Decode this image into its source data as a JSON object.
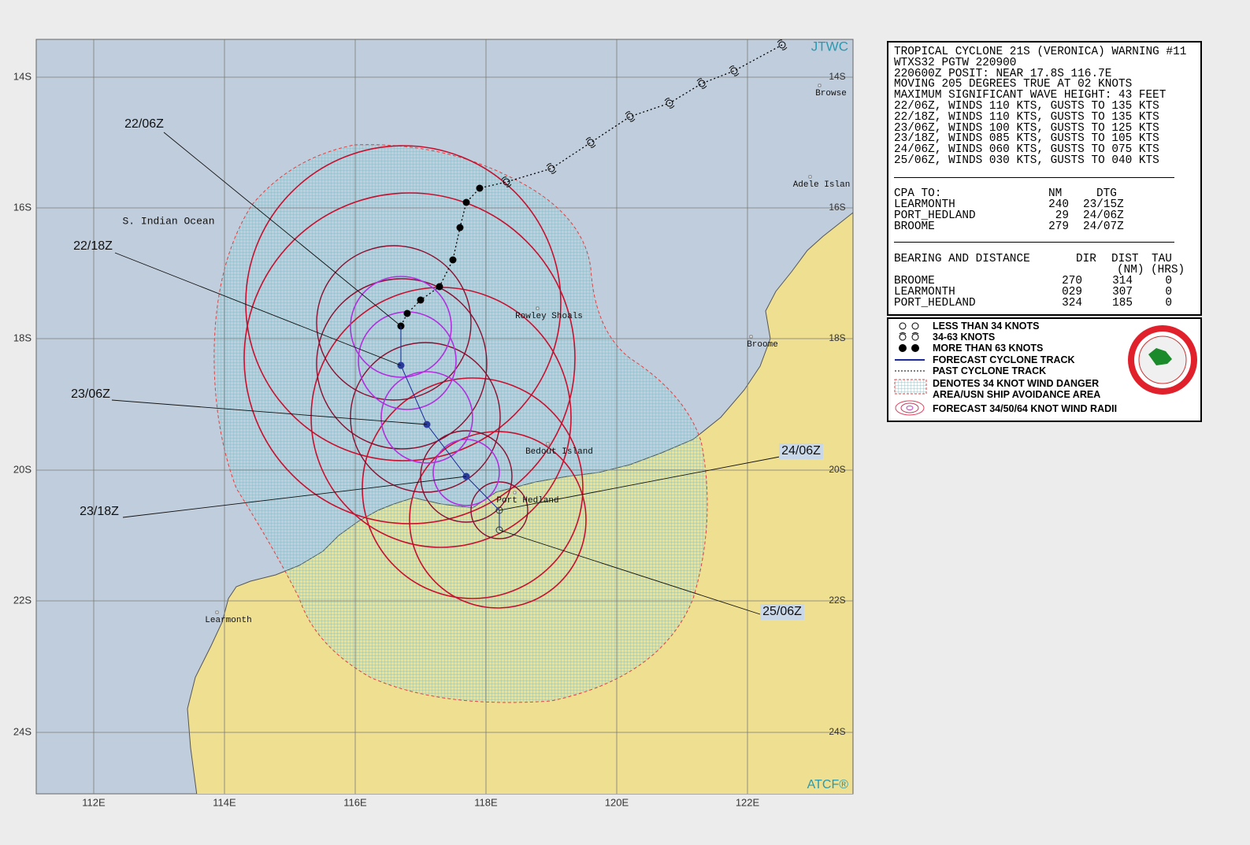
{
  "map": {
    "source_label": "JTWC",
    "atcf_label": "ATCF®",
    "lat_labels": [
      "14S",
      "16S",
      "18S",
      "20S",
      "22S",
      "24S"
    ],
    "lon_labels": [
      "112E",
      "114E",
      "116E",
      "118E",
      "120E",
      "122E"
    ],
    "places": [
      "S. Indian Ocean",
      "Rowley Shoals",
      "Bedout Island",
      "Port Hedland",
      "Broome",
      "Browse",
      "Adele Islan",
      "Learmonth"
    ],
    "forecast_labels": [
      "22/06Z",
      "22/18Z",
      "23/06Z",
      "23/18Z",
      "24/06Z",
      "25/06Z"
    ]
  },
  "warning": {
    "header": [
      "TROPICAL CYCLONE 21S (VERONICA) WARNING #11",
      "WTXS32 PGTW 220900",
      "220600Z POSIT: NEAR 17.8S 116.7E",
      "MOVING 205 DEGREES TRUE AT 02 KNOTS",
      "MAXIMUM SIGNIFICANT WAVE HEIGHT: 43 FEET"
    ],
    "forecasts": [
      "22/06Z, WINDS 110 KTS, GUSTS TO 135 KTS",
      "22/18Z, WINDS 110 KTS, GUSTS TO 135 KTS",
      "23/06Z, WINDS 100 KTS, GUSTS TO 125 KTS",
      "23/18Z, WINDS 085 KTS, GUSTS TO 105 KTS",
      "24/06Z, WINDS 060 KTS, GUSTS TO 075 KTS",
      "25/06Z, WINDS 030 KTS, GUSTS TO 040 KTS"
    ],
    "cpa": {
      "title": "CPA TO:",
      "columns": [
        "NM",
        "DTG"
      ],
      "rows": [
        [
          "LEARMONTH",
          240,
          "23/15Z"
        ],
        [
          "PORT_HEDLAND",
          29,
          "24/06Z"
        ],
        [
          "BROOME",
          279,
          "24/07Z"
        ]
      ]
    },
    "bearing": {
      "title": "BEARING AND DISTANCE",
      "columns": [
        "DIR",
        "DIST",
        "TAU"
      ],
      "units": [
        "(NM)",
        "(HRS)"
      ],
      "rows": [
        [
          "BROOME",
          270,
          314,
          0
        ],
        [
          "LEARMONTH",
          "029",
          307,
          0
        ],
        [
          "PORT_HEDLAND",
          324,
          185,
          0
        ]
      ]
    }
  },
  "legend": {
    "items": [
      "LESS THAN 34 KNOTS",
      "34-63 KNOTS",
      "MORE THAN 63 KNOTS",
      "FORECAST CYCLONE TRACK",
      "PAST CYCLONE TRACK",
      "DENOTES 34 KNOT WIND DANGER",
      "AREA/USN SHIP AVOIDANCE AREA",
      "FORECAST 34/50/64 KNOT WIND RADII"
    ]
  }
}
